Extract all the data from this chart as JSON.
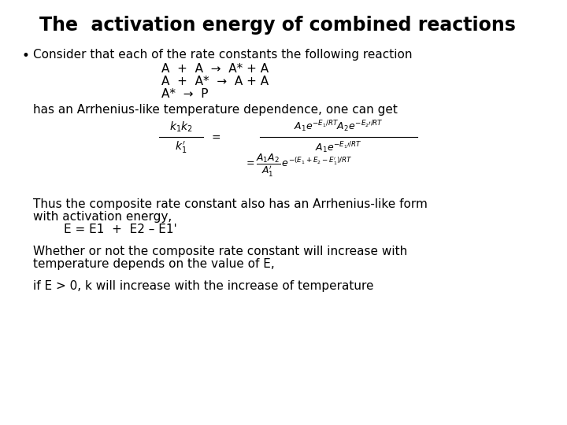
{
  "title": "The  activation energy of combined reactions",
  "background_color": "#ffffff",
  "text_color": "#000000",
  "title_fontsize": 17,
  "body_fontsize": 11,
  "math_fontsize": 9,
  "bullet": "•",
  "line1": "Consider that each of the rate constants the following reaction",
  "rxn1": "A  +  A  →  A* + A",
  "rxn2": "A  +  A*  →  A + A",
  "rxn3": "A*  →  P",
  "line2": "has an Arrhenius-like temperature dependence, one can get",
  "line3a": "Thus the composite rate constant also has an Arrhenius-like form",
  "line3b": "with activation energy,",
  "line4": "        E = E1  +  E2 – E1'",
  "line5a": "Whether or not the composite rate constant will increase with",
  "line5b": "temperature depends on the value of E,",
  "line6": "if E > 0, k will increase with the increase of temperature"
}
